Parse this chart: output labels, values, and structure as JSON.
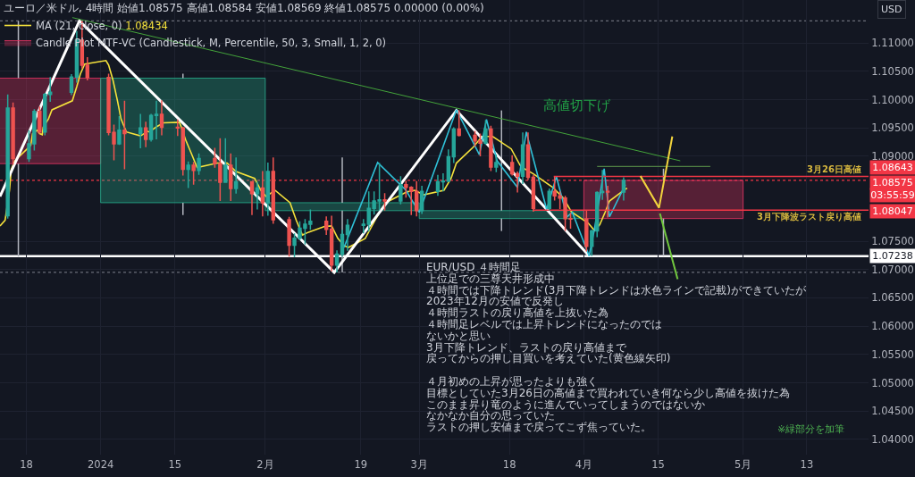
{
  "chart_data": {
    "type": "candlestick",
    "title": "ユーロ／米ドル, 4時間 始値1.08575 高値1.08584 安値1.08569 終値1.08575 0.00000 (0.00%)",
    "ylabel": "USD",
    "legend": "top left",
    "grid": true,
    "xlim": [
      "2023-12-13T01:00",
      "2024-05-24T15:00"
    ],
    "xticks": [
      {
        "value": "2023-12-18",
        "label": "18"
      },
      {
        "value": "2024-01-01",
        "label": "2024"
      },
      {
        "value": "2024-01-15",
        "label": "15"
      },
      {
        "value": "2024-02-01",
        "label": "2月"
      },
      {
        "value": "2024-02-19",
        "label": "19"
      },
      {
        "value": "2024-03-01",
        "label": "3月"
      },
      {
        "value": "2024-03-18",
        "label": "18"
      },
      {
        "value": "2024-04-01",
        "label": "4月"
      },
      {
        "value": "2024-04-15",
        "label": "15"
      },
      {
        "value": "2024-05-01",
        "label": "5月"
      },
      {
        "value": "2024-05-13",
        "label": "13"
      }
    ],
    "ylim": [
      1.0373,
      1.1176
    ],
    "yticks": [
      {
        "value": 1.04,
        "label": "1.04000"
      },
      {
        "value": 1.045,
        "label": "1.04500"
      },
      {
        "value": 1.05,
        "label": "1.05000"
      },
      {
        "value": 1.055,
        "label": "1.05500"
      },
      {
        "value": 1.06,
        "label": "1.06000"
      },
      {
        "value": 1.065,
        "label": "1.06500"
      },
      {
        "value": 1.07,
        "label": "1.07000"
      },
      {
        "value": 1.075,
        "label": "1.07500"
      },
      {
        "value": 1.09,
        "label": "1.09000"
      },
      {
        "value": 1.095,
        "label": "1.09500"
      },
      {
        "value": 1.1,
        "label": "1.10000"
      },
      {
        "value": 1.105,
        "label": "1.10500"
      },
      {
        "value": 1.11,
        "label": "1.11000"
      }
    ],
    "series": [
      {
        "type": "line",
        "name": "MA (21, close, 0)",
        "color": "#f5e23c",
        "x": [
          "2023-12-13T01:00",
          "2023-12-14T00:00",
          "2023-12-14T20:00",
          "2023-12-15T04:00",
          "2023-12-15T20:00",
          "2023-12-18T20:00",
          "2023-12-19T04:00",
          "2023-12-20T00:00",
          "2023-12-20T12:00",
          "2023-12-21T00:00",
          "2023-12-21T04:00",
          "2023-12-22T04:00",
          "2023-12-22T20:00",
          "2023-12-26T16:00",
          "2023-12-27T12:00",
          "2023-12-28T04:00",
          "2023-12-29T00:00",
          "2024-01-02T00:00",
          "2024-01-02T12:00",
          "2024-01-03T08:00",
          "2024-01-04T04:00",
          "2024-01-04T20:00",
          "2024-01-05T20:00",
          "2024-01-08T12:00",
          "2024-01-09T20:00",
          "2024-01-10T04:00",
          "2024-01-11T12:00",
          "2024-01-12T20:00",
          "2024-01-15T20:00",
          "2024-01-16T04:00",
          "2024-01-17T00:00",
          "2024-01-18T04:00",
          "2024-01-19T04:00",
          "2024-01-23T00:00",
          "2024-01-24T20:00",
          "2024-01-26T12:00",
          "2024-01-30T00:00",
          "2024-01-31T04:00",
          "2024-02-01T04:00",
          "2024-02-02T20:00",
          "2024-02-05T16:00",
          "2024-02-06T20:00",
          "2024-02-08T00:00",
          "2024-02-09T04:00",
          "2024-02-12T04:00",
          "2024-02-13T12:00",
          "2024-02-14T16:00",
          "2024-02-15T20:00",
          "2024-02-16T16:00",
          "2024-02-19T20:00",
          "2024-02-21T16:00",
          "2024-02-23T16:00",
          "2024-02-27T16:00",
          "2024-02-29T04:00",
          "2024-03-01T20:00",
          "2024-03-05T16:00",
          "2024-03-07T00:00",
          "2024-03-08T00:00",
          "2024-03-11T04:00",
          "2024-03-12T20:00",
          "2024-03-14T20:00",
          "2024-03-18T08:00",
          "2024-03-20T00:00",
          "2024-03-21T00:00",
          "2024-03-22T12:00",
          "2024-03-26T04:00",
          "2024-03-28T04:00",
          "2024-03-29T16:00",
          "2024-04-01T20:00",
          "2024-04-03T00:00",
          "2024-04-04T00:00",
          "2024-04-05T00:00",
          "2024-04-05T20:00",
          "2024-04-08T20:00",
          "2024-04-09T04:00"
        ],
        "values": [
          1.0777,
          1.0787,
          1.084,
          1.0877,
          1.0892,
          1.0919,
          1.094,
          1.0946,
          1.094,
          1.0938,
          1.0951,
          1.0966,
          1.0982,
          1.0998,
          1.1023,
          1.1045,
          1.1063,
          1.1069,
          1.1061,
          1.1034,
          1.0998,
          1.0966,
          1.0943,
          1.0936,
          1.0944,
          1.0943,
          1.0952,
          1.0959,
          1.096,
          1.0952,
          1.0929,
          1.0903,
          1.088,
          1.0888,
          1.0888,
          1.0873,
          1.0861,
          1.084,
          1.0829,
          1.084,
          1.0818,
          1.0787,
          1.0761,
          1.0766,
          1.0776,
          1.0777,
          1.0755,
          1.0742,
          1.0739,
          1.0755,
          1.0787,
          1.0818,
          1.0837,
          1.084,
          1.0832,
          1.084,
          1.0861,
          1.0888,
          1.0916,
          1.0935,
          1.0935,
          1.0913,
          1.0884,
          1.0877,
          1.0869,
          1.0845,
          1.0826,
          1.0802,
          1.0782,
          1.0769,
          1.0779,
          1.0801,
          1.0821,
          1.0842,
          1.08434
        ]
      },
      {
        "type": "candlestick",
        "name": "Candle Plot MTF-VC (Candlestick, M, Percentile, 50, 3, Small, 1, 2, 0)",
        "x": [
          "2023-12-16T12:00",
          "2024-01-16T12:00",
          "2024-02-15T12:00",
          "2024-03-16T12:00",
          "2024-04-16T00:00"
        ],
        "ohlc": [
          [
            1.0887,
            1.1139,
            1.0723,
            1.1038
          ],
          [
            1.1038,
            1.1046,
            1.0796,
            1.0818
          ],
          [
            1.0818,
            1.0898,
            1.0695,
            1.0804
          ],
          [
            1.0804,
            1.0981,
            1.0768,
            1.079
          ],
          [
            1.079,
            1.0878,
            1.0724,
            1.08575
          ]
        ],
        "colors": [
          "#e03361",
          "#26a98a",
          "#26a98a",
          "#26a98a",
          "#e03361"
        ]
      },
      {
        "type": "line",
        "color": "#ffffff",
        "x": [
          "2023-12-13T01:00",
          "2023-12-28T00:00",
          "2024-02-14T00:00",
          "2024-03-08T00:00",
          "2024-04-02T00:00"
        ],
        "values": [
          1.0829,
          1.1139,
          1.0695,
          1.0981,
          1.0724
        ]
      },
      {
        "type": "line",
        "color": "#2fc1d8",
        "x": [
          "2024-02-15T20:00",
          "2024-02-22T04:00",
          "2024-02-27T12:00",
          "2024-03-01T00:00",
          "2024-03-08T00:00",
          "2024-03-12T08:00",
          "2024-03-13T16:00",
          "2024-03-15T16:00",
          "2024-03-19T12:00",
          "2024-03-21T04:00",
          "2024-03-25T00:00",
          "2024-03-26T20:00",
          "2024-03-28T20:00",
          "2024-03-29T20:00",
          "2024-04-02T00:00",
          "2024-04-03T00:00",
          "2024-04-04T20:00",
          "2024-04-05T20:00",
          "2024-04-08T20:00"
        ],
        "values": [
          1.0739,
          1.0889,
          1.084,
          1.0801,
          1.0982,
          1.0903,
          1.0965,
          1.0892,
          1.0845,
          1.0943,
          1.0806,
          1.0864,
          1.0793,
          1.0801,
          1.0724,
          1.0771,
          1.0878,
          1.0793,
          1.085
        ]
      },
      {
        "type": "line",
        "color": "#43a33a",
        "x": [
          "2023-12-26T16:00",
          "2024-04-19T04:00"
        ],
        "values": [
          1.1145,
          1.0892
        ]
      },
      {
        "type": "line",
        "color": "#4f7f43",
        "x": [
          "2024-04-03T12:00",
          "2024-04-24T20:00"
        ],
        "values": [
          1.0882,
          1.0882
        ]
      },
      {
        "type": "line",
        "color": "#f23645",
        "x": [
          "2024-03-26T08:00",
          "2024-05-24T15:00"
        ],
        "values": [
          1.08643,
          1.08643
        ],
        "value_labels": [
          null,
          "1.08643"
        ]
      },
      {
        "type": "line",
        "color": "#f23645",
        "x": [
          "2024-03-22T12:00",
          "2024-05-24T15:00"
        ],
        "values": [
          1.08047,
          1.08047
        ],
        "value_labels": [
          null,
          "1.08047"
        ]
      },
      {
        "type": "line",
        "color": "#f2d43d",
        "x": [
          "2024-04-11T16:00",
          "2024-04-15T04:00",
          "2024-04-17T16:00"
        ],
        "values": [
          1.0865,
          1.0809,
          1.0935
        ]
      },
      {
        "type": "line",
        "color": "#72c83f",
        "x": [
          "2024-04-15T08:00",
          "2024-04-18T16:00"
        ],
        "values": [
          1.0799,
          1.0683
        ]
      },
      {
        "x": [
          "2023-12-14T12:00",
          "2023-12-15T12:00",
          "2023-12-18T12:00",
          "2023-12-19T12:00",
          "2023-12-20T12:00",
          "2023-12-21T12:00",
          "2023-12-22T12:00",
          "2023-12-26T12:00",
          "2023-12-27T12:00",
          "2023-12-28T12:00",
          "2023-12-29T12:00",
          "2024-01-02T12:00",
          "2024-01-03T12:00",
          "2024-01-04T12:00",
          "2024-01-05T12:00",
          "2024-01-08T12:00",
          "2024-01-09T12:00",
          "2024-01-10T12:00",
          "2024-01-11T12:00",
          "2024-01-12T12:00",
          "2024-01-15T12:00",
          "2024-01-16T12:00",
          "2024-01-17T12:00",
          "2024-01-18T12:00",
          "2024-01-19T12:00",
          "2024-01-22T12:00",
          "2024-01-23T12:00",
          "2024-01-24T12:00",
          "2024-01-25T12:00",
          "2024-01-26T12:00",
          "2024-01-29T12:00",
          "2024-01-30T12:00",
          "2024-01-31T12:00",
          "2024-02-01T12:00",
          "2024-02-02T12:00",
          "2024-02-05T12:00",
          "2024-02-06T12:00",
          "2024-02-07T12:00",
          "2024-02-08T12:00",
          "2024-02-09T12:00",
          "2024-02-12T12:00",
          "2024-02-13T12:00",
          "2024-02-14T12:00",
          "2024-02-15T12:00",
          "2024-02-16T12:00",
          "2024-02-19T12:00",
          "2024-02-20T12:00",
          "2024-02-21T12:00",
          "2024-02-22T12:00",
          "2024-02-23T12:00",
          "2024-02-26T12:00",
          "2024-02-27T12:00",
          "2024-02-28T12:00",
          "2024-02-29T12:00",
          "2024-03-01T12:00",
          "2024-03-04T12:00",
          "2024-03-05T12:00",
          "2024-03-06T12:00",
          "2024-03-07T12:00",
          "2024-03-08T12:00",
          "2024-03-11T12:00",
          "2024-03-12T12:00",
          "2024-03-13T12:00",
          "2024-03-14T12:00",
          "2024-03-15T12:00",
          "2024-03-18T12:00",
          "2024-03-19T12:00",
          "2024-03-20T12:00",
          "2024-03-21T12:00",
          "2024-03-22T12:00",
          "2024-03-25T12:00",
          "2024-03-26T12:00",
          "2024-03-27T12:00",
          "2024-03-28T12:00",
          "2024-03-29T12:00",
          "2024-04-01T12:00",
          "2024-04-02T12:00",
          "2024-04-03T12:00",
          "2024-04-04T12:00",
          "2024-04-05T12:00",
          "2024-04-08T12:00"
        ],
        "ohlc": [
          [
            1.0795,
            1.1009,
            1.079,
            1.0985
          ],
          [
            1.0985,
            1.0995,
            1.0885,
            1.0896
          ],
          [
            1.0896,
            1.0946,
            1.089,
            1.0922
          ],
          [
            1.0922,
            1.0983,
            1.091,
            1.0979
          ],
          [
            1.0979,
            1.0988,
            1.094,
            1.0943
          ],
          [
            1.0943,
            1.1012,
            1.0937,
            1.1009
          ],
          [
            1.1009,
            1.104,
            1.0996,
            1.1013
          ],
          [
            1.1013,
            1.1045,
            1.1008,
            1.104
          ],
          [
            1.104,
            1.1121,
            1.103,
            1.1105
          ],
          [
            1.1105,
            1.1139,
            1.1055,
            1.1061
          ],
          [
            1.1061,
            1.1075,
            1.1034,
            1.1039
          ],
          [
            1.1039,
            1.1046,
            1.0937,
            1.0942
          ],
          [
            1.0942,
            1.0956,
            1.0893,
            1.0922
          ],
          [
            1.0922,
            1.0971,
            1.092,
            1.0946
          ],
          [
            1.0946,
            1.0998,
            1.0877,
            1.094
          ],
          [
            1.094,
            1.0975,
            1.0914,
            1.095
          ],
          [
            1.095,
            1.0961,
            1.0916,
            1.093
          ],
          [
            1.093,
            1.0975,
            1.0926,
            1.0972
          ],
          [
            1.0972,
            1.0998,
            1.093,
            1.0974
          ],
          [
            1.0974,
            1.0999,
            1.0937,
            1.0951
          ],
          [
            1.0951,
            1.0965,
            1.0936,
            1.095
          ],
          [
            1.095,
            1.0952,
            1.0866,
            1.0877
          ],
          [
            1.0877,
            1.0891,
            1.0844,
            1.0884
          ],
          [
            1.0884,
            1.089,
            1.085,
            1.0875
          ],
          [
            1.0875,
            1.0905,
            1.0867,
            1.0896
          ],
          [
            1.0896,
            1.0915,
            1.088,
            1.0887
          ],
          [
            1.0887,
            1.0932,
            1.0821,
            1.0854
          ],
          [
            1.0854,
            1.0932,
            1.0853,
            1.0884
          ],
          [
            1.0884,
            1.0905,
            1.0821,
            1.0843
          ],
          [
            1.0843,
            1.0898,
            1.0834,
            1.0855
          ],
          [
            1.0855,
            1.0855,
            1.0796,
            1.0834
          ],
          [
            1.0834,
            1.0855,
            1.0806,
            1.0844
          ],
          [
            1.0844,
            1.0874,
            1.0794,
            1.0818
          ],
          [
            1.0818,
            1.0889,
            1.0795,
            1.0873
          ],
          [
            1.0873,
            1.0898,
            1.0781,
            1.0788
          ],
          [
            1.0788,
            1.0793,
            1.0723,
            1.0743
          ],
          [
            1.0743,
            1.0764,
            1.0722,
            1.0755
          ],
          [
            1.0755,
            1.0785,
            1.0752,
            1.0773
          ],
          [
            1.0773,
            1.0789,
            1.0744,
            1.078
          ],
          [
            1.078,
            1.0806,
            1.077,
            1.0785
          ],
          [
            1.0785,
            1.0794,
            1.0761,
            1.0771
          ],
          [
            1.0771,
            1.0795,
            1.0697,
            1.0708
          ],
          [
            1.0708,
            1.0734,
            1.0695,
            1.0727
          ],
          [
            1.0727,
            1.077,
            1.0723,
            1.0762
          ],
          [
            1.0762,
            1.0789,
            1.0733,
            1.0778
          ],
          [
            1.0778,
            1.0789,
            1.0764,
            1.078
          ],
          [
            1.078,
            1.0838,
            1.0767,
            1.0808
          ],
          [
            1.0808,
            1.0838,
            1.0797,
            1.0821
          ],
          [
            1.0821,
            1.0888,
            1.0805,
            1.0823
          ],
          [
            1.0823,
            1.0835,
            1.0804,
            1.0821
          ],
          [
            1.0821,
            1.0865,
            1.0815,
            1.085
          ],
          [
            1.085,
            1.0857,
            1.0827,
            1.0845
          ],
          [
            1.0845,
            1.0847,
            1.0796,
            1.0838
          ],
          [
            1.0838,
            1.0856,
            1.0794,
            1.0804
          ],
          [
            1.0804,
            1.0848,
            1.0798,
            1.0838
          ],
          [
            1.0838,
            1.0867,
            1.083,
            1.0855
          ],
          [
            1.0855,
            1.087,
            1.0838,
            1.0856
          ],
          [
            1.0856,
            1.0912,
            1.0854,
            1.0899
          ],
          [
            1.0899,
            1.0951,
            1.0888,
            1.0948
          ],
          [
            1.0948,
            1.0981,
            1.0935,
            1.0937
          ],
          [
            1.0937,
            1.0945,
            1.0917,
            1.0927
          ],
          [
            1.0927,
            1.094,
            1.09,
            1.0923
          ],
          [
            1.0923,
            1.0964,
            1.092,
            1.0948
          ],
          [
            1.0948,
            1.0954,
            1.0874,
            1.0881
          ],
          [
            1.0881,
            1.0903,
            1.0872,
            1.0889
          ],
          [
            1.0889,
            1.0902,
            1.0866,
            1.0869
          ],
          [
            1.0869,
            1.0873,
            1.0836,
            1.0865
          ],
          [
            1.0865,
            1.0942,
            1.0851,
            1.092
          ],
          [
            1.092,
            1.0942,
            1.0858,
            1.0863
          ],
          [
            1.0863,
            1.0867,
            1.0802,
            1.0808
          ],
          [
            1.0808,
            1.0843,
            1.0804,
            1.0838
          ],
          [
            1.0838,
            1.0864,
            1.0822,
            1.083
          ],
          [
            1.083,
            1.0838,
            1.0807,
            1.0826
          ],
          [
            1.0826,
            1.083,
            1.0768,
            1.079
          ],
          [
            1.079,
            1.08,
            1.0772,
            1.0789
          ],
          [
            1.0789,
            1.0804,
            1.0732,
            1.0741
          ],
          [
            1.0741,
            1.077,
            1.0724,
            1.0768
          ],
          [
            1.0768,
            1.0838,
            1.0757,
            1.0836
          ],
          [
            1.0836,
            1.0876,
            1.0823,
            1.0838
          ],
          [
            1.0838,
            1.0848,
            1.0792,
            1.0837
          ],
          [
            1.0837,
            1.0863,
            1.0822,
            1.08575
          ]
        ],
        "colors": [
          "#26a69a",
          "#ef5350",
          "#26a69a",
          "#26a69a",
          "#ef5350",
          "#26a69a",
          "#26a69a",
          "#26a69a",
          "#26a69a",
          "#ef5350",
          "#ef5350",
          "#ef5350",
          "#ef5350",
          "#26a69a",
          "#ef5350",
          "#26a69a",
          "#ef5350",
          "#26a69a",
          "#26a69a",
          "#ef5350",
          "#ef5350",
          "#ef5350",
          "#26a69a",
          "#ef5350",
          "#26a69a",
          "#ef5350",
          "#ef5350",
          "#26a69a",
          "#ef5350",
          "#26a69a",
          "#ef5350",
          "#26a69a",
          "#ef5350",
          "#26a69a",
          "#ef5350",
          "#ef5350",
          "#26a69a",
          "#26a69a",
          "#26a69a",
          "#26a69a",
          "#ef5350",
          "#ef5350",
          "#26a69a",
          "#26a69a",
          "#26a69a",
          "#26a69a",
          "#26a69a",
          "#26a69a",
          "#26a69a",
          "#ef5350",
          "#26a69a",
          "#ef5350",
          "#ef5350",
          "#ef5350",
          "#26a69a",
          "#26a69a",
          "#26a69a",
          "#26a69a",
          "#26a69a",
          "#ef5350",
          "#ef5350",
          "#ef5350",
          "#26a69a",
          "#ef5350",
          "#26a69a",
          "#ef5350",
          "#ef5350",
          "#26a69a",
          "#ef5350",
          "#ef5350",
          "#26a69a",
          "#ef5350",
          "#ef5350",
          "#ef5350",
          "#ef5350",
          "#ef5350",
          "#26a69a",
          "#26a69a",
          "#26a69a",
          "#ef5350",
          "#26a69a"
        ]
      }
    ],
    "ref_lines": [
      {
        "axis": "y",
        "value": 1.07238,
        "label": "1.07238",
        "color": "#ffffff"
      },
      {
        "axis": "y",
        "value": 1.08575,
        "label": "1.08575",
        "color": "#f23645",
        "line_style": "dotted"
      },
      {
        "axis": "y",
        "value": 1.1139,
        "color": "#6a6d78",
        "line_style": "dotted"
      },
      {
        "axis": "y",
        "value": 1.0695,
        "color": "#6a6d78",
        "line_style": "dotted"
      }
    ],
    "annotations": [
      "1.08434",
      "EUR/USD ４時間足",
      "上位足での三尊天井形成中",
      "４時間では下降トレンド(3月下降トレンドは水色ラインで記載)ができていたが",
      "2023年12月の安値で反発し",
      "４時間ラストの戻り高値を上抜いた為",
      "４時間足レベルでは上昇トレンドになったのでは",
      "ないかと思い",
      "3月下降トレンド、ラストの戻り高値まで",
      "戻ってからの押し目買いを考えていた(黄色線矢印)",
      "４月初めの上昇が思ったよりも強く",
      "目標としていた3月26日の高値まで買われていき何なら少し高値を抜けた為",
      "このまま昇り竜のように進んでいってしまうのではないか",
      "なかなか自分の思っていた",
      "ラストの押し安値まで戻ってこず焦っていた。",
      "※緑部分を加筆",
      "高値切下げ",
      "3月26日高値",
      "3月下降波ラスト戻り高値",
      "03:55:59"
    ]
  }
}
